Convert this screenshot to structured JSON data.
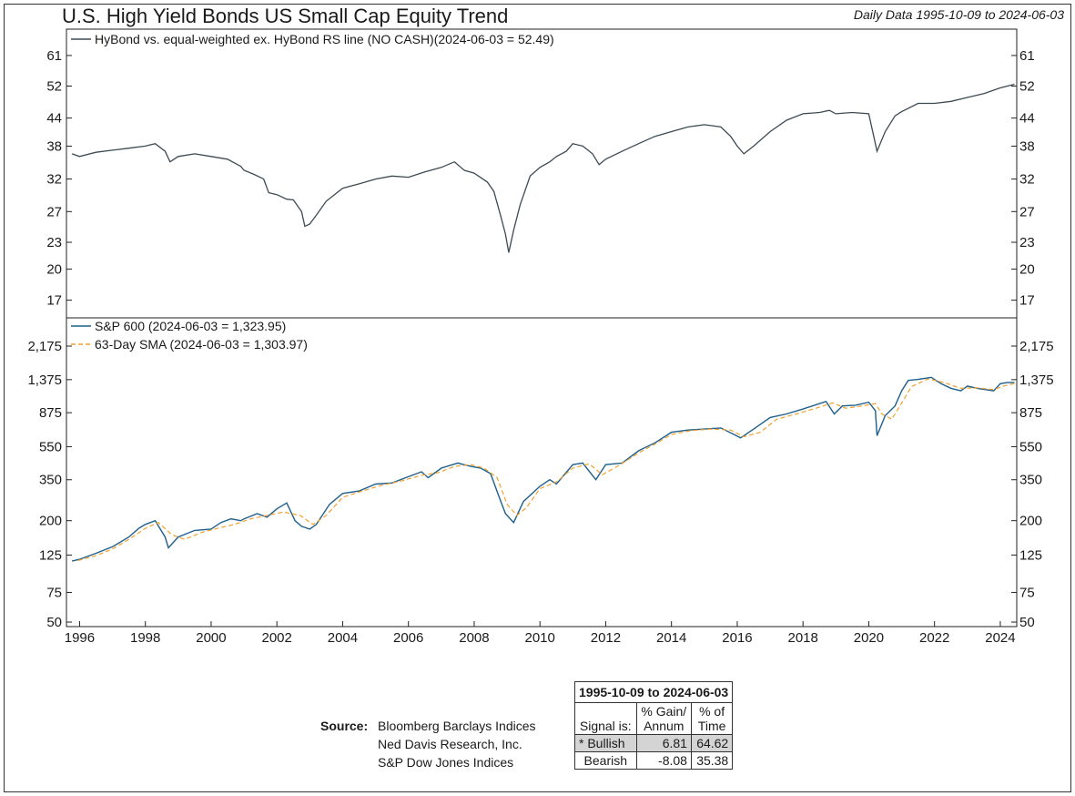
{
  "title": "U.S. High Yield Bonds US Small Cap Equity Trend",
  "date_range": "Daily Data 1995-10-09 to 2024-06-03",
  "chart_data": [
    {
      "type": "line",
      "panel": "top",
      "scale": "log",
      "yticks": [
        61,
        52,
        44,
        38,
        32,
        27,
        23,
        20,
        17
      ],
      "ylim": [
        15.5,
        70
      ],
      "xlim": [
        1995.6,
        2024.5
      ],
      "series": [
        {
          "name": "HyBond vs. equal-weighted ex. HyBond RS line (NO CASH)(2024-06-03 = 52.49)",
          "color": "#3d4a52",
          "x": [
            1995.77,
            1996.0,
            1996.5,
            1997.0,
            1997.5,
            1998.0,
            1998.3,
            1998.6,
            1998.75,
            1999.0,
            1999.5,
            2000.0,
            2000.5,
            2000.9,
            2001.0,
            2001.3,
            2001.6,
            2001.75,
            2002.0,
            2002.3,
            2002.5,
            2002.75,
            2002.85,
            2003.0,
            2003.2,
            2003.5,
            2004.0,
            2004.5,
            2005.0,
            2005.5,
            2006.0,
            2006.5,
            2007.0,
            2007.4,
            2007.7,
            2008.0,
            2008.4,
            2008.6,
            2008.8,
            2008.95,
            2009.05,
            2009.2,
            2009.4,
            2009.7,
            2010.0,
            2010.3,
            2010.5,
            2010.8,
            2011.0,
            2011.3,
            2011.6,
            2011.8,
            2012.0,
            2012.5,
            2013.0,
            2013.5,
            2014.0,
            2014.5,
            2015.0,
            2015.5,
            2015.8,
            2016.0,
            2016.2,
            2016.5,
            2017.0,
            2017.5,
            2018.0,
            2018.5,
            2018.8,
            2019.0,
            2019.5,
            2020.0,
            2020.15,
            2020.25,
            2020.5,
            2020.8,
            2021.0,
            2021.5,
            2022.0,
            2022.5,
            2023.0,
            2023.5,
            2024.0,
            2024.43
          ],
          "values": [
            36.5,
            36.0,
            36.8,
            37.2,
            37.6,
            38.0,
            38.5,
            37.0,
            35.0,
            36.0,
            36.5,
            36.0,
            35.5,
            34.2,
            33.5,
            32.8,
            32.0,
            29.8,
            29.5,
            28.8,
            28.7,
            27.0,
            25.0,
            25.3,
            26.5,
            28.5,
            30.5,
            31.2,
            32.0,
            32.5,
            32.3,
            33.2,
            34.0,
            35.0,
            33.5,
            33.0,
            31.5,
            30.0,
            26.5,
            24.0,
            21.8,
            24.5,
            28.0,
            32.5,
            34.0,
            35.0,
            36.0,
            37.0,
            38.5,
            38.0,
            36.5,
            34.5,
            35.5,
            37.0,
            38.5,
            40.0,
            41.0,
            42.0,
            42.5,
            42.0,
            40.0,
            38.0,
            36.5,
            38.0,
            41.0,
            43.5,
            45.0,
            45.3,
            45.8,
            45.0,
            45.3,
            45.0,
            40.0,
            37.0,
            41.0,
            44.5,
            45.5,
            47.5,
            47.5,
            48.0,
            49.0,
            50.0,
            51.5,
            52.49
          ]
        }
      ],
      "legend_position": "top-left"
    },
    {
      "type": "line",
      "panel": "bottom",
      "scale": "log",
      "yticks": [
        2175,
        1375,
        875,
        550,
        350,
        200,
        125,
        75,
        50
      ],
      "yticklabels": [
        "2,175",
        "1,375",
        "875",
        "550",
        "350",
        "200",
        "125",
        "75",
        "50"
      ],
      "ylim": [
        47,
        3200
      ],
      "xlim": [
        1995.6,
        2024.5
      ],
      "xticks": [
        1996,
        1998,
        2000,
        2002,
        2004,
        2006,
        2008,
        2010,
        2012,
        2014,
        2016,
        2018,
        2020,
        2022,
        2024
      ],
      "series": [
        {
          "name": "S&P 600 (2024-06-03 = 1,323.95)",
          "color": "#1f5f8b",
          "x": [
            1995.77,
            1996.0,
            1996.5,
            1997.0,
            1997.5,
            1997.8,
            1998.0,
            1998.3,
            1998.6,
            1998.7,
            1999.0,
            1999.5,
            2000.0,
            2000.3,
            2000.6,
            2000.9,
            2001.0,
            2001.4,
            2001.7,
            2002.0,
            2002.3,
            2002.55,
            2002.75,
            2003.0,
            2003.2,
            2003.6,
            2004.0,
            2004.5,
            2005.0,
            2005.5,
            2006.0,
            2006.4,
            2006.6,
            2007.0,
            2007.5,
            2007.9,
            2008.2,
            2008.5,
            2008.75,
            2008.95,
            2009.2,
            2009.5,
            2010.0,
            2010.3,
            2010.5,
            2011.0,
            2011.3,
            2011.7,
            2012.0,
            2012.5,
            2013.0,
            2013.5,
            2014.0,
            2014.5,
            2015.0,
            2015.5,
            2015.9,
            2016.1,
            2016.5,
            2017.0,
            2017.5,
            2018.0,
            2018.7,
            2018.95,
            2019.2,
            2019.6,
            2020.0,
            2020.2,
            2020.25,
            2020.5,
            2020.8,
            2021.0,
            2021.2,
            2021.5,
            2021.9,
            2022.2,
            2022.5,
            2022.8,
            2023.0,
            2023.3,
            2023.8,
            2024.0,
            2024.2,
            2024.43
          ],
          "values": [
            115,
            118,
            128,
            140,
            160,
            180,
            190,
            200,
            160,
            138,
            160,
            175,
            178,
            195,
            205,
            200,
            205,
            220,
            210,
            235,
            255,
            200,
            185,
            178,
            190,
            250,
            290,
            300,
            330,
            335,
            365,
            390,
            360,
            410,
            440,
            420,
            410,
            380,
            280,
            220,
            195,
            260,
            320,
            350,
            330,
            430,
            440,
            350,
            430,
            440,
            520,
            580,
            670,
            690,
            700,
            710,
            650,
            620,
            700,
            820,
            860,
            920,
            1020,
            860,
            960,
            970,
            1010,
            900,
            640,
            840,
            960,
            1180,
            1360,
            1380,
            1420,
            1300,
            1220,
            1180,
            1260,
            1220,
            1180,
            1300,
            1320,
            1323.95
          ]
        },
        {
          "name": "63-Day SMA (2024-06-03 = 1,303.97)",
          "color": "#f0a030",
          "dashed": true,
          "x": [
            1995.95,
            1996.5,
            1997.0,
            1997.5,
            1998.0,
            1998.4,
            1998.8,
            1999.2,
            1999.7,
            2000.2,
            2000.7,
            2001.2,
            2001.7,
            2002.2,
            2002.7,
            2003.1,
            2003.5,
            2004.0,
            2004.6,
            2005.2,
            2005.8,
            2006.4,
            2006.9,
            2007.4,
            2007.9,
            2008.3,
            2008.7,
            2009.0,
            2009.3,
            2009.6,
            2010.0,
            2010.5,
            2011.0,
            2011.5,
            2011.9,
            2012.4,
            2013.0,
            2013.5,
            2014.0,
            2014.6,
            2015.2,
            2015.8,
            2016.2,
            2016.7,
            2017.2,
            2017.8,
            2018.4,
            2018.9,
            2019.3,
            2019.8,
            2020.2,
            2020.4,
            2020.7,
            2021.0,
            2021.3,
            2021.8,
            2022.3,
            2022.8,
            2023.3,
            2023.8,
            2024.1,
            2024.43
          ],
          "values": [
            116,
            124,
            136,
            155,
            180,
            195,
            165,
            155,
            170,
            180,
            190,
            205,
            215,
            225,
            215,
            190,
            215,
            275,
            300,
            325,
            345,
            372,
            385,
            420,
            430,
            410,
            360,
            250,
            215,
            240,
            310,
            340,
            410,
            435,
            375,
            425,
            505,
            570,
            650,
            685,
            700,
            690,
            630,
            670,
            800,
            860,
            930,
            1000,
            930,
            960,
            990,
            860,
            800,
            1000,
            1250,
            1390,
            1320,
            1220,
            1230,
            1200,
            1260,
            1303.97
          ]
        }
      ],
      "legend_position": "top-left"
    }
  ],
  "source": {
    "label": "Source:",
    "lines": [
      "Bloomberg Barclays Indices",
      "Ned Davis Research, Inc.",
      "S&P Dow Jones Indices"
    ]
  },
  "signal_table": {
    "title": "1995-10-09 to 2024-06-03",
    "header": {
      "col1": "Signal is:",
      "col2_a": "% Gain/",
      "col2_b": "Annum",
      "col3_a": "% of",
      "col3_b": "Time"
    },
    "rows": [
      {
        "signal": "* Bullish",
        "gain": "6.81",
        "time": "64.62"
      },
      {
        "signal": "Bearish",
        "gain": "-8.08",
        "time": "35.38"
      }
    ]
  }
}
